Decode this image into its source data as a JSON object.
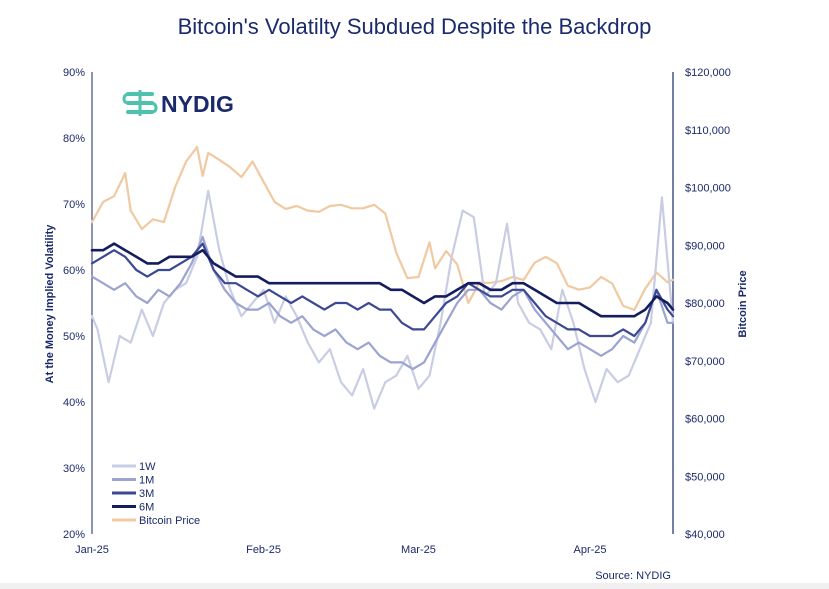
{
  "chart_data": {
    "type": "line",
    "title": "Bitcoin's Volatilty Subdued Despite the Backdrop",
    "ylabel_left": "At the Money Implied Volatility",
    "ylabel_right": "Bitcoin Price",
    "yticks_left": [
      "90%",
      "80%",
      "70%",
      "60%",
      "50%",
      "40%",
      "30%",
      "20%"
    ],
    "yticks_right": [
      "$120,000",
      "$110,000",
      "$100,000",
      "$90,000",
      "$80,000",
      "$70,000",
      "$60,000",
      "$50,000",
      "$40,000"
    ],
    "xticks": [
      "Jan-25",
      "Feb-25",
      "Mar-25",
      "Apr-25"
    ],
    "ylim_left": [
      20,
      90
    ],
    "ylim_right": [
      40000,
      120000
    ],
    "x_range": [
      "2025-01-01",
      "2025-04-16"
    ],
    "legend": "bottom-left",
    "source": "Source: NYDIG",
    "series": [
      {
        "name": "1W",
        "axis": "left",
        "color": "#c9cde3",
        "width": 2.2,
        "x": [
          "2025-01-01",
          "2025-01-02",
          "2025-01-04",
          "2025-01-06",
          "2025-01-08",
          "2025-01-10",
          "2025-01-12",
          "2025-01-14",
          "2025-01-16",
          "2025-01-18",
          "2025-01-20",
          "2025-01-21",
          "2025-01-22",
          "2025-01-24",
          "2025-01-26",
          "2025-01-28",
          "2025-01-30",
          "2025-02-01",
          "2025-02-03",
          "2025-02-05",
          "2025-02-07",
          "2025-02-09",
          "2025-02-11",
          "2025-02-13",
          "2025-02-15",
          "2025-02-17",
          "2025-02-19",
          "2025-02-21",
          "2025-02-23",
          "2025-02-25",
          "2025-02-27",
          "2025-03-01",
          "2025-03-03",
          "2025-03-05",
          "2025-03-07",
          "2025-03-09",
          "2025-03-11",
          "2025-03-13",
          "2025-03-15",
          "2025-03-17",
          "2025-03-19",
          "2025-03-21",
          "2025-03-23",
          "2025-03-25",
          "2025-03-27",
          "2025-03-29",
          "2025-03-31",
          "2025-04-02",
          "2025-04-04",
          "2025-04-06",
          "2025-04-08",
          "2025-04-10",
          "2025-04-12",
          "2025-04-14",
          "2025-04-16"
        ],
        "y": [
          53,
          51,
          43,
          50,
          49,
          54,
          50,
          55,
          57,
          58,
          62,
          67,
          72,
          63,
          57,
          53,
          55,
          57,
          52,
          56,
          53,
          49,
          46,
          48,
          43,
          41,
          45,
          39,
          43,
          44,
          47,
          42,
          44,
          52,
          62,
          69,
          68,
          56,
          58,
          67,
          55,
          52,
          51,
          48,
          57,
          52,
          45,
          40,
          45,
          43,
          44,
          48,
          52,
          71,
          52
        ]
      },
      {
        "name": "1M",
        "axis": "left",
        "color": "#9ba3d1",
        "width": 2.2,
        "x": [
          "2025-01-01",
          "2025-01-03",
          "2025-01-05",
          "2025-01-07",
          "2025-01-09",
          "2025-01-11",
          "2025-01-13",
          "2025-01-15",
          "2025-01-17",
          "2025-01-19",
          "2025-01-21",
          "2025-01-23",
          "2025-01-25",
          "2025-01-27",
          "2025-01-29",
          "2025-01-31",
          "2025-02-02",
          "2025-02-04",
          "2025-02-06",
          "2025-02-08",
          "2025-02-10",
          "2025-02-12",
          "2025-02-14",
          "2025-02-16",
          "2025-02-18",
          "2025-02-20",
          "2025-02-22",
          "2025-02-24",
          "2025-02-26",
          "2025-02-28",
          "2025-03-02",
          "2025-03-04",
          "2025-03-06",
          "2025-03-08",
          "2025-03-10",
          "2025-03-12",
          "2025-03-14",
          "2025-03-16",
          "2025-03-18",
          "2025-03-20",
          "2025-03-22",
          "2025-03-24",
          "2025-03-26",
          "2025-03-28",
          "2025-03-30",
          "2025-04-01",
          "2025-04-03",
          "2025-04-05",
          "2025-04-07",
          "2025-04-09",
          "2025-04-11",
          "2025-04-13",
          "2025-04-15",
          "2025-04-16"
        ],
        "y": [
          59,
          58,
          57,
          58,
          56,
          55,
          57,
          56,
          58,
          61,
          65,
          60,
          57,
          55,
          54,
          54,
          55,
          53,
          52,
          53,
          51,
          50,
          51,
          49,
          48,
          49,
          47,
          46,
          46,
          45,
          46,
          49,
          52,
          55,
          57,
          57,
          55,
          54,
          56,
          57,
          54,
          52,
          50,
          48,
          49,
          48,
          47,
          48,
          50,
          49,
          52,
          57,
          52,
          52
        ]
      },
      {
        "name": "3M",
        "axis": "left",
        "color": "#3b4893",
        "width": 2.2,
        "x": [
          "2025-01-01",
          "2025-01-03",
          "2025-01-05",
          "2025-01-07",
          "2025-01-09",
          "2025-01-11",
          "2025-01-13",
          "2025-01-15",
          "2025-01-17",
          "2025-01-19",
          "2025-01-21",
          "2025-01-23",
          "2025-01-25",
          "2025-01-27",
          "2025-01-29",
          "2025-01-31",
          "2025-02-02",
          "2025-02-04",
          "2025-02-06",
          "2025-02-08",
          "2025-02-10",
          "2025-02-12",
          "2025-02-14",
          "2025-02-16",
          "2025-02-18",
          "2025-02-20",
          "2025-02-22",
          "2025-02-24",
          "2025-02-26",
          "2025-02-28",
          "2025-03-02",
          "2025-03-04",
          "2025-03-06",
          "2025-03-08",
          "2025-03-10",
          "2025-03-12",
          "2025-03-14",
          "2025-03-16",
          "2025-03-18",
          "2025-03-20",
          "2025-03-22",
          "2025-03-24",
          "2025-03-26",
          "2025-03-28",
          "2025-03-30",
          "2025-04-01",
          "2025-04-03",
          "2025-04-05",
          "2025-04-07",
          "2025-04-09",
          "2025-04-11",
          "2025-04-13",
          "2025-04-15",
          "2025-04-16"
        ],
        "y": [
          61,
          62,
          63,
          62,
          60,
          59,
          60,
          60,
          61,
          62,
          64,
          60,
          58,
          58,
          57,
          56,
          57,
          56,
          55,
          56,
          55,
          54,
          55,
          55,
          54,
          55,
          54,
          54,
          52,
          51,
          51,
          53,
          55,
          56,
          58,
          57,
          56,
          56,
          57,
          57,
          55,
          53,
          52,
          51,
          51,
          50,
          50,
          50,
          51,
          50,
          52,
          57,
          54,
          53
        ]
      },
      {
        "name": "6M",
        "axis": "left",
        "color": "#141d5e",
        "width": 2.6,
        "x": [
          "2025-01-01",
          "2025-01-03",
          "2025-01-05",
          "2025-01-07",
          "2025-01-09",
          "2025-01-11",
          "2025-01-13",
          "2025-01-15",
          "2025-01-17",
          "2025-01-19",
          "2025-01-21",
          "2025-01-23",
          "2025-01-25",
          "2025-01-27",
          "2025-01-29",
          "2025-01-31",
          "2025-02-02",
          "2025-02-04",
          "2025-02-06",
          "2025-02-08",
          "2025-02-10",
          "2025-02-12",
          "2025-02-14",
          "2025-02-16",
          "2025-02-18",
          "2025-02-20",
          "2025-02-22",
          "2025-02-24",
          "2025-02-26",
          "2025-02-28",
          "2025-03-02",
          "2025-03-04",
          "2025-03-06",
          "2025-03-08",
          "2025-03-10",
          "2025-03-12",
          "2025-03-14",
          "2025-03-16",
          "2025-03-18",
          "2025-03-20",
          "2025-03-22",
          "2025-03-24",
          "2025-03-26",
          "2025-03-28",
          "2025-03-30",
          "2025-04-01",
          "2025-04-03",
          "2025-04-05",
          "2025-04-07",
          "2025-04-09",
          "2025-04-11",
          "2025-04-13",
          "2025-04-15",
          "2025-04-16"
        ],
        "y": [
          63,
          63,
          64,
          63,
          62,
          61,
          61,
          62,
          62,
          62,
          63,
          61,
          60,
          59,
          59,
          59,
          58,
          58,
          58,
          58,
          58,
          58,
          58,
          58,
          58,
          58,
          58,
          57,
          57,
          56,
          55,
          56,
          56,
          57,
          58,
          58,
          57,
          57,
          58,
          58,
          57,
          56,
          55,
          55,
          55,
          54,
          53,
          53,
          53,
          53,
          54,
          56,
          55,
          54
        ]
      },
      {
        "name": "Bitcoin Price",
        "axis": "right",
        "color": "#f0c9a0",
        "width": 2.2,
        "x": [
          "2025-01-01",
          "2025-01-03",
          "2025-01-05",
          "2025-01-07",
          "2025-01-08",
          "2025-01-10",
          "2025-01-12",
          "2025-01-14",
          "2025-01-16",
          "2025-01-18",
          "2025-01-20",
          "2025-01-21",
          "2025-01-22",
          "2025-01-24",
          "2025-01-26",
          "2025-01-28",
          "2025-01-30",
          "2025-02-01",
          "2025-02-03",
          "2025-02-05",
          "2025-02-07",
          "2025-02-09",
          "2025-02-11",
          "2025-02-13",
          "2025-02-15",
          "2025-02-17",
          "2025-02-19",
          "2025-02-21",
          "2025-02-23",
          "2025-02-25",
          "2025-02-27",
          "2025-03-01",
          "2025-03-03",
          "2025-03-04",
          "2025-03-06",
          "2025-03-08",
          "2025-03-10",
          "2025-03-12",
          "2025-03-14",
          "2025-03-16",
          "2025-03-18",
          "2025-03-20",
          "2025-03-22",
          "2025-03-24",
          "2025-03-26",
          "2025-03-28",
          "2025-03-30",
          "2025-04-01",
          "2025-04-03",
          "2025-04-05",
          "2025-04-07",
          "2025-04-09",
          "2025-04-11",
          "2025-04-13",
          "2025-04-15",
          "2025-04-16"
        ],
        "y": [
          94000,
          97500,
          98500,
          102500,
          96000,
          92800,
          94500,
          94000,
          100000,
          104500,
          107000,
          102000,
          106000,
          104800,
          103500,
          101800,
          104500,
          101000,
          97500,
          96300,
          96800,
          96000,
          95800,
          96800,
          97000,
          96400,
          96400,
          97000,
          95500,
          88700,
          84300,
          84500,
          90500,
          86000,
          89000,
          86700,
          80000,
          83500,
          83500,
          83800,
          84500,
          84000,
          87000,
          88000,
          86900,
          83000,
          82300,
          82700,
          84500,
          83400,
          79500,
          78800,
          82500,
          85300,
          83600,
          84000
        ]
      }
    ]
  },
  "legend": {
    "items": [
      {
        "label": "1W",
        "color": "#c9cde3"
      },
      {
        "label": "1M",
        "color": "#9ba3d1"
      },
      {
        "label": "3M",
        "color": "#3b4893"
      },
      {
        "label": "6M",
        "color": "#141d5e"
      },
      {
        "label": "Bitcoin Price",
        "color": "#f0c9a0"
      }
    ]
  },
  "logo": {
    "text": "NYDIG",
    "icon": "nydig-logo-icon",
    "color": "#4ec2ad"
  }
}
